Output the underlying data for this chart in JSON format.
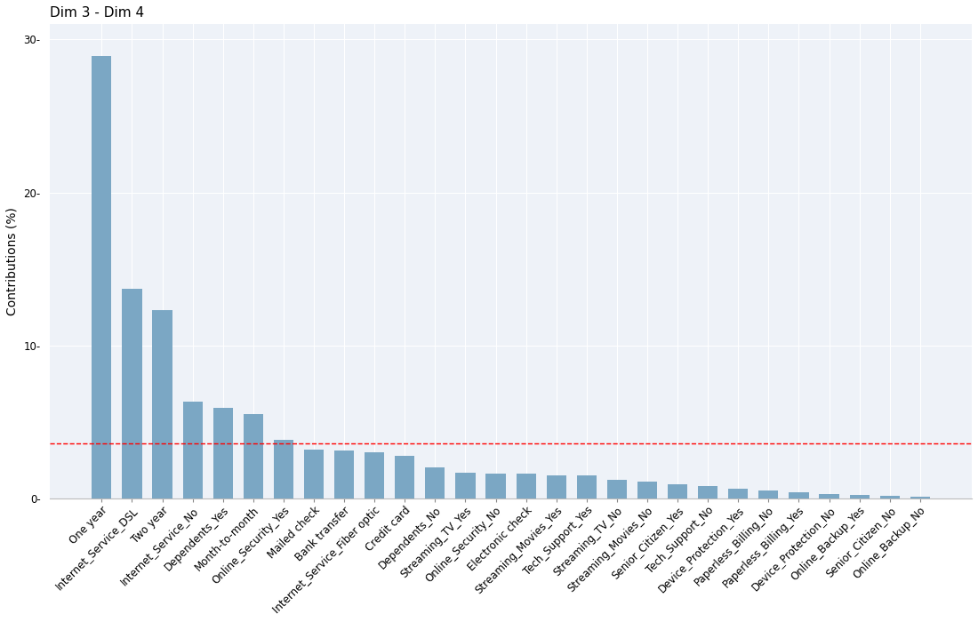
{
  "title": "Dim 3 - Dim 4",
  "ylabel": "Contributions (%)",
  "categories": [
    "One year",
    "Internet_Service_DSL",
    "Two year",
    "Internet_Service_No",
    "Dependents_Yes",
    "Month-to-month",
    "Online_Security_Yes",
    "Mailed check",
    "Bank transfer",
    "Internet_Service_Fiber optic",
    "Credit card",
    "Dependents_No",
    "Streaming_TV_Yes",
    "Online_Security_No",
    "Electronic check",
    "Streaming_Movies_Yes",
    "Tech_Support_Yes",
    "Streaming_TV_No",
    "Streaming_Movies_No",
    "Senior_Citizen_Yes",
    "Tech_Support_No",
    "Device_Protection_Yes",
    "Paperless_Billing_No",
    "Paperless_Billing_Yes",
    "Device_Protection_No",
    "Online_Backup_Yes",
    "Senior_Citizen_No",
    "Online_Backup_No"
  ],
  "values": [
    28.9,
    13.7,
    12.3,
    6.3,
    5.9,
    5.5,
    3.8,
    3.2,
    3.1,
    3.0,
    2.8,
    2.0,
    1.7,
    1.6,
    1.6,
    1.5,
    1.5,
    1.2,
    1.1,
    0.9,
    0.8,
    0.6,
    0.5,
    0.4,
    0.3,
    0.2,
    0.15,
    0.1
  ],
  "bar_color": "#7ba7c4",
  "reference_line": 3.57,
  "reference_line_color": "#FF0000",
  "ylim": [
    0,
    31
  ],
  "yticks": [
    0,
    10,
    20,
    30
  ],
  "background_color": "#ffffff",
  "panel_background": "#eef2f8",
  "grid_color": "#ffffff",
  "title_fontsize": 11,
  "axis_label_fontsize": 10,
  "tick_fontsize": 8.5
}
